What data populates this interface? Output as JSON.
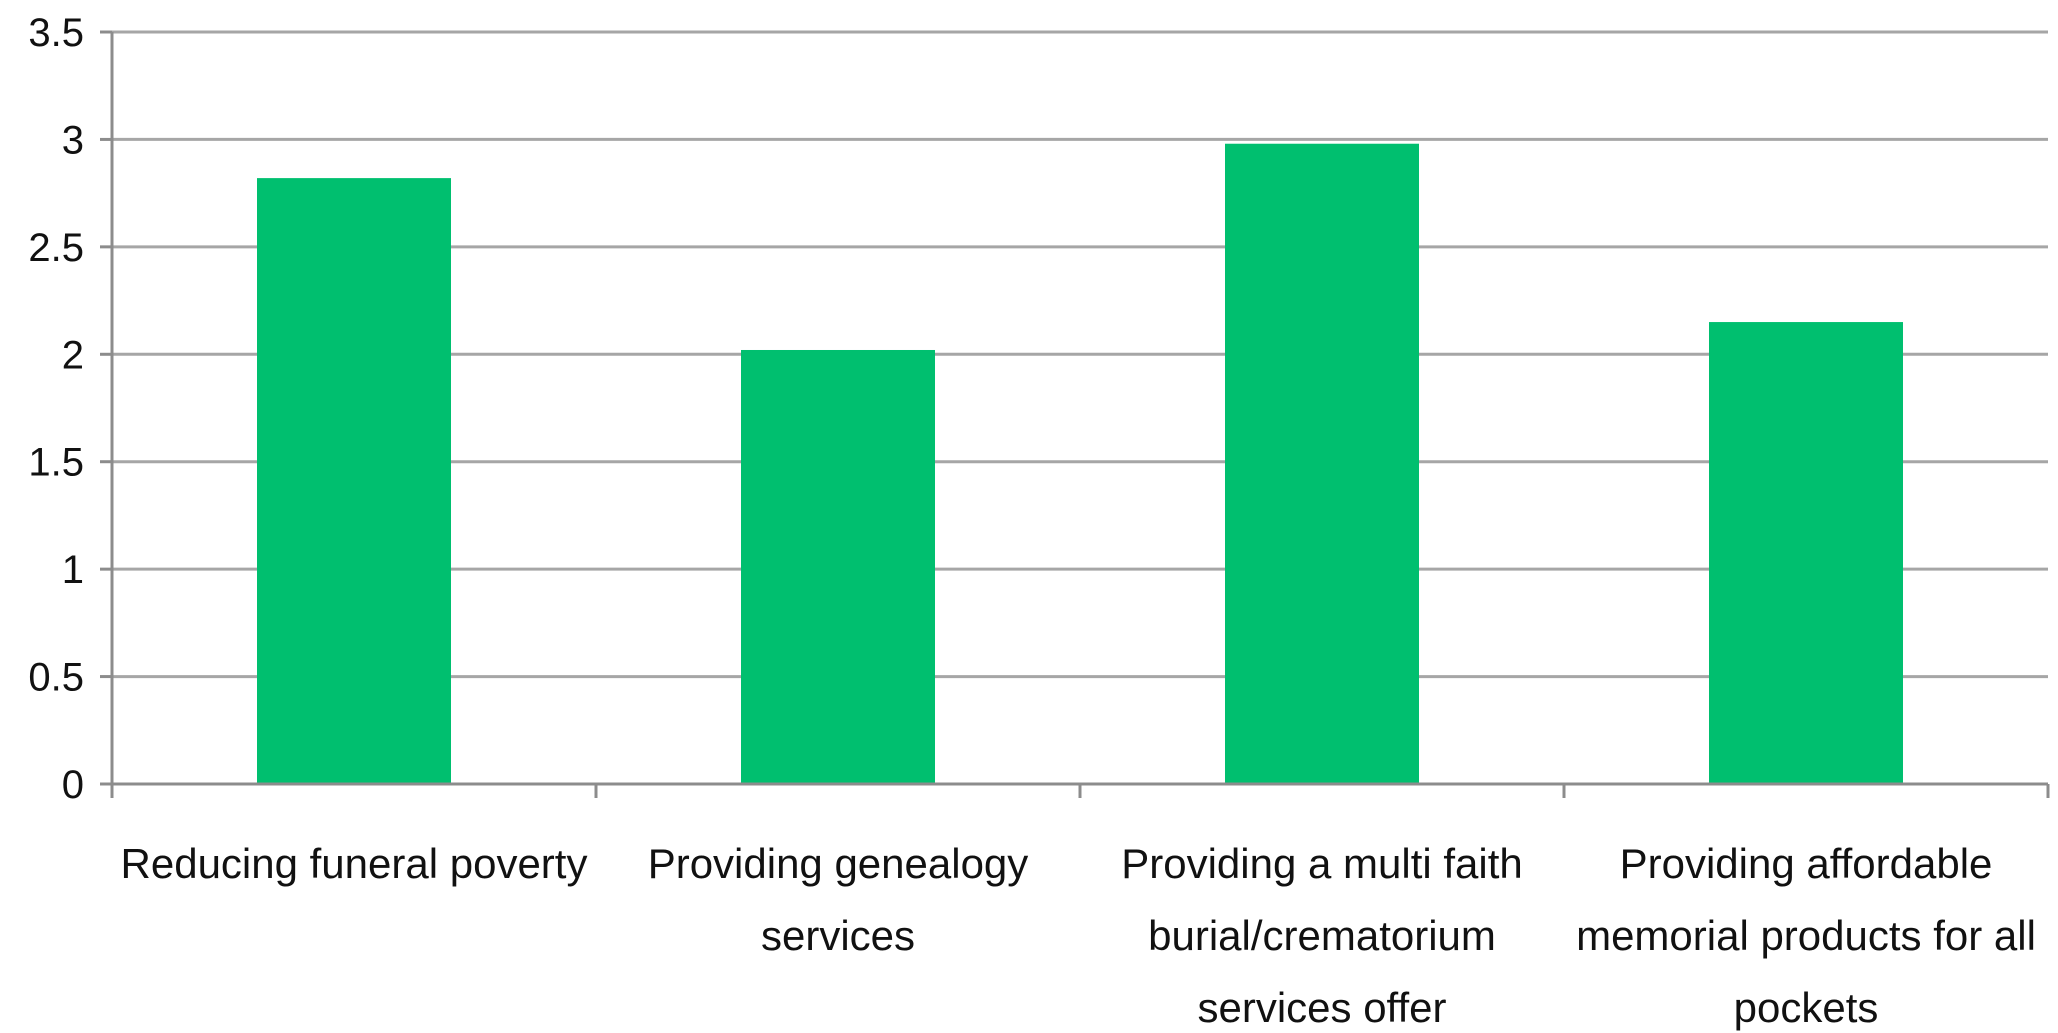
{
  "chart_data": {
    "type": "bar",
    "title": "",
    "xlabel": "",
    "ylabel": "",
    "categories": [
      [
        "Reducing funeral poverty"
      ],
      [
        "Providing genealogy",
        "services"
      ],
      [
        "Providing a multi faith",
        "burial/crematorium",
        "services offer"
      ],
      [
        "Providing affordable",
        "memorial products for all",
        "pockets"
      ]
    ],
    "values": [
      2.82,
      2.02,
      2.98,
      2.15
    ],
    "ylim": [
      0,
      3.5
    ],
    "yticks": [
      "0",
      "0.5",
      "1",
      "1.5",
      "2",
      "2.5",
      "3",
      "3.5"
    ],
    "grid": true,
    "legend": "none",
    "bar_color": "#00bf6f",
    "grid_color": "#a6a6a6",
    "axis_color": "#8c8c8c"
  }
}
